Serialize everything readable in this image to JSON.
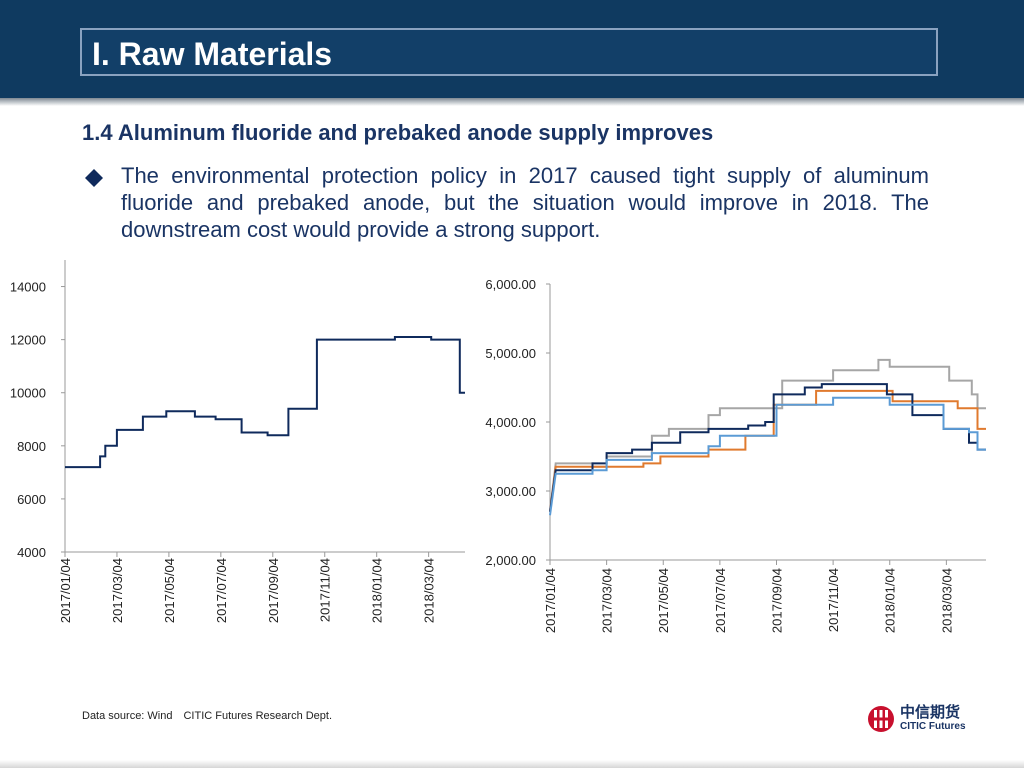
{
  "header": {
    "title": "I. Raw Materials"
  },
  "section": {
    "subtitle": "1.4 Aluminum fluoride and prebaked anode supply improves",
    "bullet": "The environmental protection policy in 2017 caused tight supply of aluminum fluoride and prebaked anode, but the situation would improve in 2018. The downstream cost would provide a strong support."
  },
  "footer": {
    "source": "Data source: Wind　CITIC Futures Research Dept.",
    "logo_cn": "中信期货",
    "logo_en": "CITIC Futures"
  },
  "colors": {
    "header_bg": "#0f3a60",
    "text_navy": "#1a3464",
    "logo_red": "#c8102e",
    "series_navy": "#0f2a5c",
    "series_orange": "#e07a2e",
    "series_gray": "#a6a6a6",
    "series_blue": "#5b9bd5"
  },
  "chart_data": [
    {
      "type": "line",
      "title": "",
      "xlabel": "",
      "ylabel": "",
      "ylim": [
        4000,
        15000
      ],
      "yticks": [
        4000,
        6000,
        8000,
        10000,
        12000,
        14000
      ],
      "ytick_labels": [
        "4000",
        "6000",
        "8000",
        "10000",
        "12000",
        "14000"
      ],
      "xtick_labels": [
        "2017/01/04",
        "2017/03/04",
        "2017/05/04",
        "2017/07/04",
        "2017/09/04",
        "2017/11/04",
        "2018/01/04",
        "2018/03/04"
      ],
      "xrange_months": [
        0,
        15.4
      ],
      "step": true,
      "series": [
        {
          "name": "",
          "color": "#0f2a5c",
          "points": [
            [
              0,
              7200
            ],
            [
              1.35,
              7200
            ],
            [
              1.35,
              7600
            ],
            [
              1.55,
              7600
            ],
            [
              1.55,
              8000
            ],
            [
              2.0,
              8000
            ],
            [
              2.0,
              8600
            ],
            [
              3.0,
              8600
            ],
            [
              3.0,
              9100
            ],
            [
              3.9,
              9100
            ],
            [
              3.9,
              9300
            ],
            [
              5.0,
              9300
            ],
            [
              5.0,
              9100
            ],
            [
              5.8,
              9100
            ],
            [
              5.8,
              9000
            ],
            [
              6.8,
              9000
            ],
            [
              6.8,
              8500
            ],
            [
              7.8,
              8500
            ],
            [
              7.8,
              8400
            ],
            [
              8.6,
              8400
            ],
            [
              8.6,
              9400
            ],
            [
              9.7,
              9400
            ],
            [
              9.7,
              12000
            ],
            [
              12.7,
              12000
            ],
            [
              12.7,
              12100
            ],
            [
              14.1,
              12100
            ],
            [
              14.1,
              12000
            ],
            [
              15.2,
              12000
            ],
            [
              15.2,
              10000
            ],
            [
              15.4,
              10000
            ]
          ]
        }
      ]
    },
    {
      "type": "line",
      "title": "",
      "xlabel": "",
      "ylabel": "",
      "ylim": [
        2000,
        6000
      ],
      "yticks": [
        2000,
        3000,
        4000,
        5000,
        6000
      ],
      "ytick_labels": [
        "2,000.00",
        "3,000.00",
        "4,000.00",
        "5,000.00",
        "6,000.00"
      ],
      "xtick_labels": [
        "2017/01/04",
        "2017/03/04",
        "2017/05/04",
        "2017/07/04",
        "2017/09/04",
        "2017/11/04",
        "2018/01/04",
        "2018/03/04"
      ],
      "xrange_months": [
        0,
        15.4
      ],
      "step": true,
      "series": [
        {
          "name": "",
          "color": "#a6a6a6",
          "points": [
            [
              0,
              2700
            ],
            [
              0.2,
              3400
            ],
            [
              1.5,
              3400
            ],
            [
              1.5,
              3350
            ],
            [
              2.0,
              3350
            ],
            [
              2.0,
              3500
            ],
            [
              3.6,
              3500
            ],
            [
              3.6,
              3800
            ],
            [
              4.2,
              3800
            ],
            [
              4.2,
              3900
            ],
            [
              5.6,
              3900
            ],
            [
              5.6,
              4100
            ],
            [
              6.0,
              4100
            ],
            [
              6.0,
              4200
            ],
            [
              8.2,
              4200
            ],
            [
              8.2,
              4600
            ],
            [
              10.0,
              4600
            ],
            [
              10.0,
              4750
            ],
            [
              11.6,
              4750
            ],
            [
              11.6,
              4900
            ],
            [
              12.0,
              4900
            ],
            [
              12.0,
              4800
            ],
            [
              14.1,
              4800
            ],
            [
              14.1,
              4600
            ],
            [
              14.9,
              4600
            ],
            [
              14.9,
              4400
            ],
            [
              15.1,
              4400
            ],
            [
              15.1,
              4200
            ],
            [
              15.4,
              4200
            ]
          ]
        },
        {
          "name": "",
          "color": "#e07a2e",
          "points": [
            [
              0,
              2700
            ],
            [
              0.2,
              3350
            ],
            [
              3.3,
              3350
            ],
            [
              3.3,
              3400
            ],
            [
              3.9,
              3400
            ],
            [
              3.9,
              3500
            ],
            [
              5.6,
              3500
            ],
            [
              5.6,
              3600
            ],
            [
              6.9,
              3600
            ],
            [
              6.9,
              3800
            ],
            [
              7.9,
              3800
            ],
            [
              7.9,
              4250
            ],
            [
              9.4,
              4250
            ],
            [
              9.4,
              4450
            ],
            [
              12.1,
              4450
            ],
            [
              12.1,
              4300
            ],
            [
              14.4,
              4300
            ],
            [
              14.4,
              4200
            ],
            [
              15.1,
              4200
            ],
            [
              15.1,
              3900
            ],
            [
              15.4,
              3900
            ]
          ]
        },
        {
          "name": "",
          "color": "#0f2a5c",
          "points": [
            [
              0,
              2700
            ],
            [
              0.2,
              3300
            ],
            [
              1.5,
              3300
            ],
            [
              1.5,
              3400
            ],
            [
              2.0,
              3400
            ],
            [
              2.0,
              3550
            ],
            [
              2.9,
              3550
            ],
            [
              2.9,
              3600
            ],
            [
              3.6,
              3600
            ],
            [
              3.6,
              3700
            ],
            [
              4.6,
              3700
            ],
            [
              4.6,
              3850
            ],
            [
              5.6,
              3850
            ],
            [
              5.6,
              3900
            ],
            [
              7.0,
              3900
            ],
            [
              7.0,
              3950
            ],
            [
              7.6,
              3950
            ],
            [
              7.6,
              4000
            ],
            [
              7.9,
              4000
            ],
            [
              7.9,
              4400
            ],
            [
              9.0,
              4400
            ],
            [
              9.0,
              4500
            ],
            [
              9.6,
              4500
            ],
            [
              9.6,
              4550
            ],
            [
              10.5,
              4550
            ],
            [
              10.5,
              4550
            ],
            [
              11.9,
              4550
            ],
            [
              11.9,
              4400
            ],
            [
              12.8,
              4400
            ],
            [
              12.8,
              4100
            ],
            [
              13.9,
              4100
            ],
            [
              13.9,
              3900
            ],
            [
              14.8,
              3900
            ],
            [
              14.8,
              3700
            ],
            [
              15.1,
              3700
            ],
            [
              15.1,
              3600
            ],
            [
              15.4,
              3600
            ]
          ]
        },
        {
          "name": "",
          "color": "#5b9bd5",
          "points": [
            [
              0,
              2650
            ],
            [
              0.2,
              3250
            ],
            [
              1.5,
              3250
            ],
            [
              1.5,
              3300
            ],
            [
              2.0,
              3300
            ],
            [
              2.0,
              3450
            ],
            [
              3.6,
              3450
            ],
            [
              3.6,
              3550
            ],
            [
              5.6,
              3550
            ],
            [
              5.6,
              3650
            ],
            [
              6.0,
              3650
            ],
            [
              6.0,
              3800
            ],
            [
              8.0,
              3800
            ],
            [
              8.0,
              4250
            ],
            [
              10.0,
              4250
            ],
            [
              10.0,
              4350
            ],
            [
              12.0,
              4350
            ],
            [
              12.0,
              4250
            ],
            [
              13.9,
              4250
            ],
            [
              13.9,
              3900
            ],
            [
              14.8,
              3900
            ],
            [
              14.8,
              3850
            ],
            [
              15.1,
              3850
            ],
            [
              15.1,
              3600
            ],
            [
              15.4,
              3600
            ]
          ]
        }
      ]
    }
  ]
}
